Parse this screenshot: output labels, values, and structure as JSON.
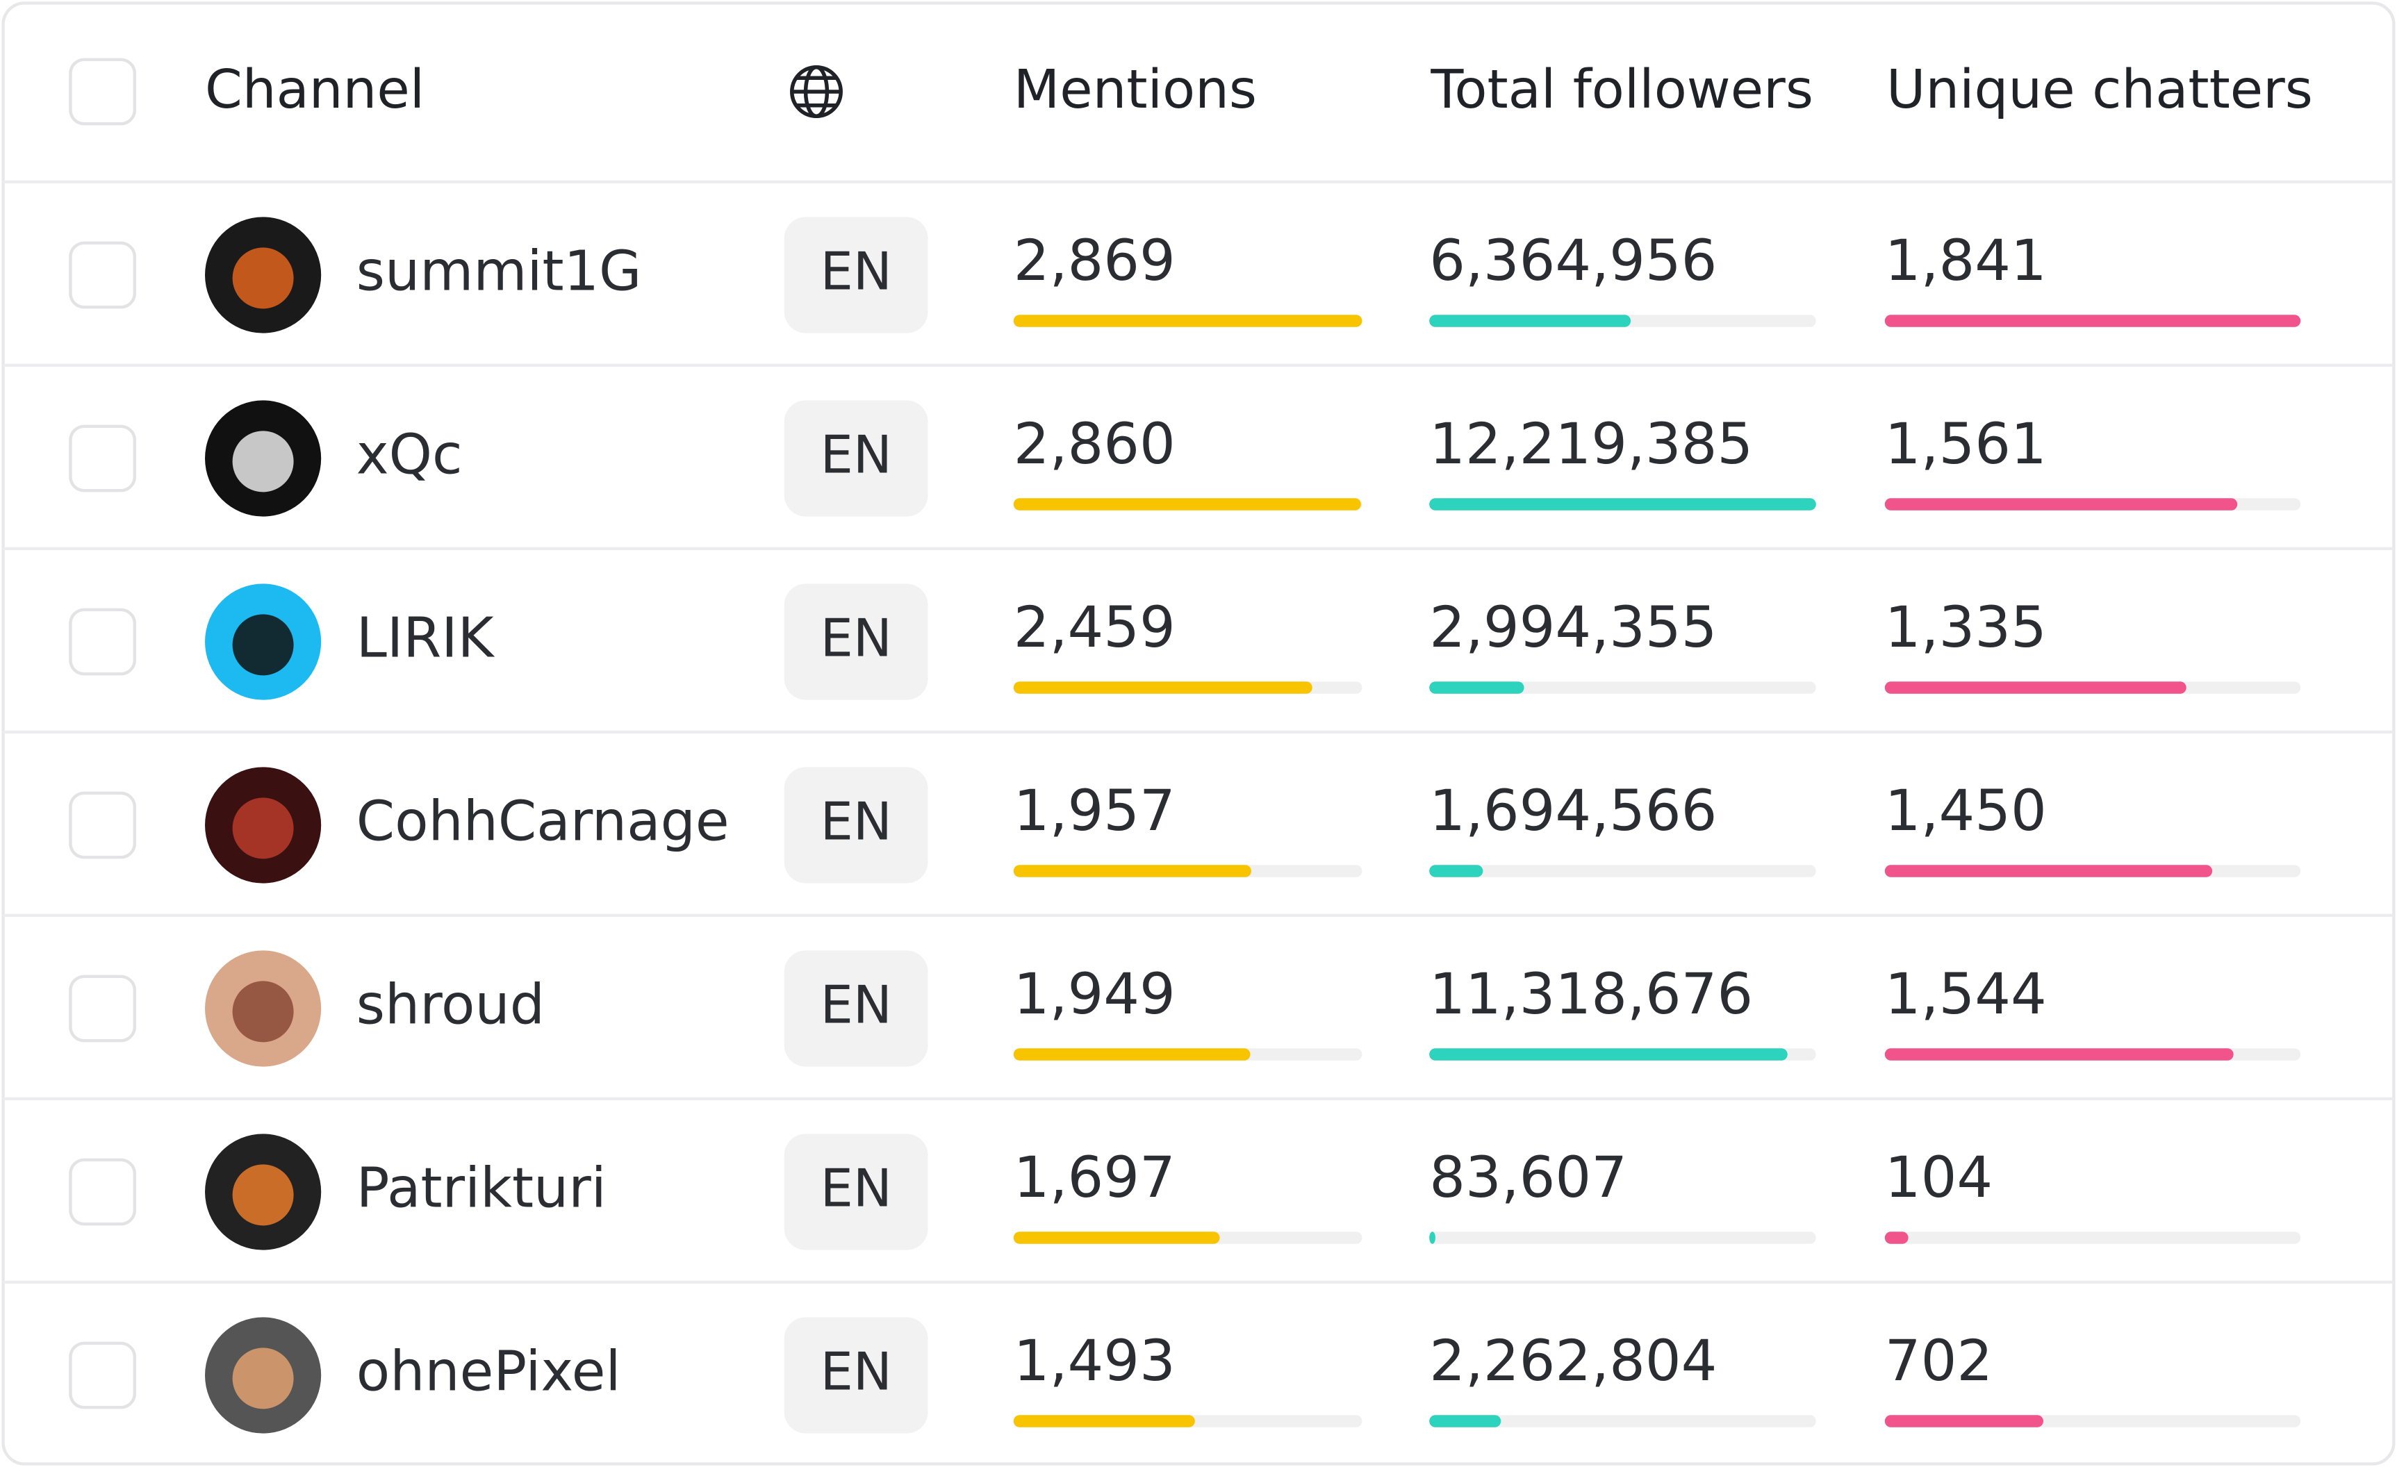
{
  "table": {
    "headers": {
      "channel": "Channel",
      "mentions": "Mentions",
      "followers": "Total followers",
      "chatters": "Unique chatters"
    },
    "channels": [
      "summit1G",
      "xQc",
      "LIRIK",
      "CohhCarnage",
      "shroud",
      "Patrikturi",
      "ohnePixel"
    ],
    "languages": [
      "EN",
      "EN",
      "EN",
      "EN",
      "EN",
      "EN",
      "EN"
    ],
    "mentions": {
      "values": [
        2869,
        2860,
        2459,
        1957,
        1949,
        1697,
        1493
      ],
      "value_labels": [
        "2,869",
        "2,860",
        "2,459",
        "1,957",
        "1,949",
        "1,697",
        "1,493"
      ],
      "color": "#f8c400"
    },
    "followers": {
      "values": [
        6364956,
        12219385,
        2994355,
        1694566,
        11318676,
        83607,
        2262804
      ],
      "value_labels": [
        "6,364,956",
        "12,219,385",
        "2,994,355",
        "1,694,566",
        "11,318,676",
        "83,607",
        "2,262,804"
      ],
      "color": "#2ed3bd"
    },
    "chatters": {
      "values": [
        1841,
        1561,
        1335,
        1450,
        1544,
        104,
        702
      ],
      "value_labels": [
        "1,841",
        "1,561",
        "1,335",
        "1,450",
        "1,544",
        "104",
        "702"
      ],
      "color": "#f0548a"
    }
  }
}
